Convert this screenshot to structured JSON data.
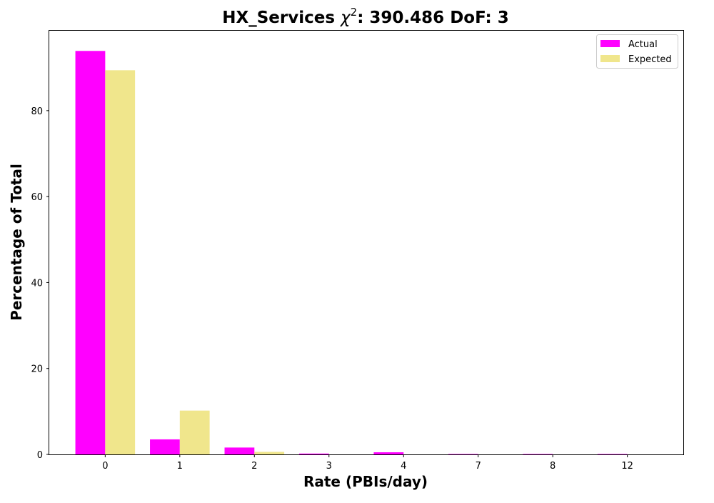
{
  "chart_data": {
    "type": "bar",
    "title": "HX_Services χ²: 390.486 DoF: 3",
    "title_parts": {
      "prefix": "HX_Services ",
      "chi": "χ",
      "sup": "2",
      "suffix": ": 390.486 DoF: 3"
    },
    "xlabel": "Rate (PBIs/day)",
    "ylabel": "Percentage of Total",
    "categories": [
      "0",
      "1",
      "2",
      "3",
      "4",
      "7",
      "8",
      "12"
    ],
    "series": [
      {
        "name": "Actual",
        "color": "#ff00ff",
        "values": [
          93.9,
          3.5,
          1.6,
          0.2,
          0.5,
          0.1,
          0.1,
          0.1
        ]
      },
      {
        "name": "Expected",
        "color": "#f0e68c",
        "values": [
          89.4,
          10.2,
          0.6,
          0.0,
          0.0,
          0.0,
          0.0,
          0.0
        ]
      }
    ],
    "ylim": [
      0,
      98.6
    ],
    "yticks": [
      0,
      20,
      40,
      60,
      80
    ],
    "grid": false,
    "legend_position": "top-right"
  }
}
